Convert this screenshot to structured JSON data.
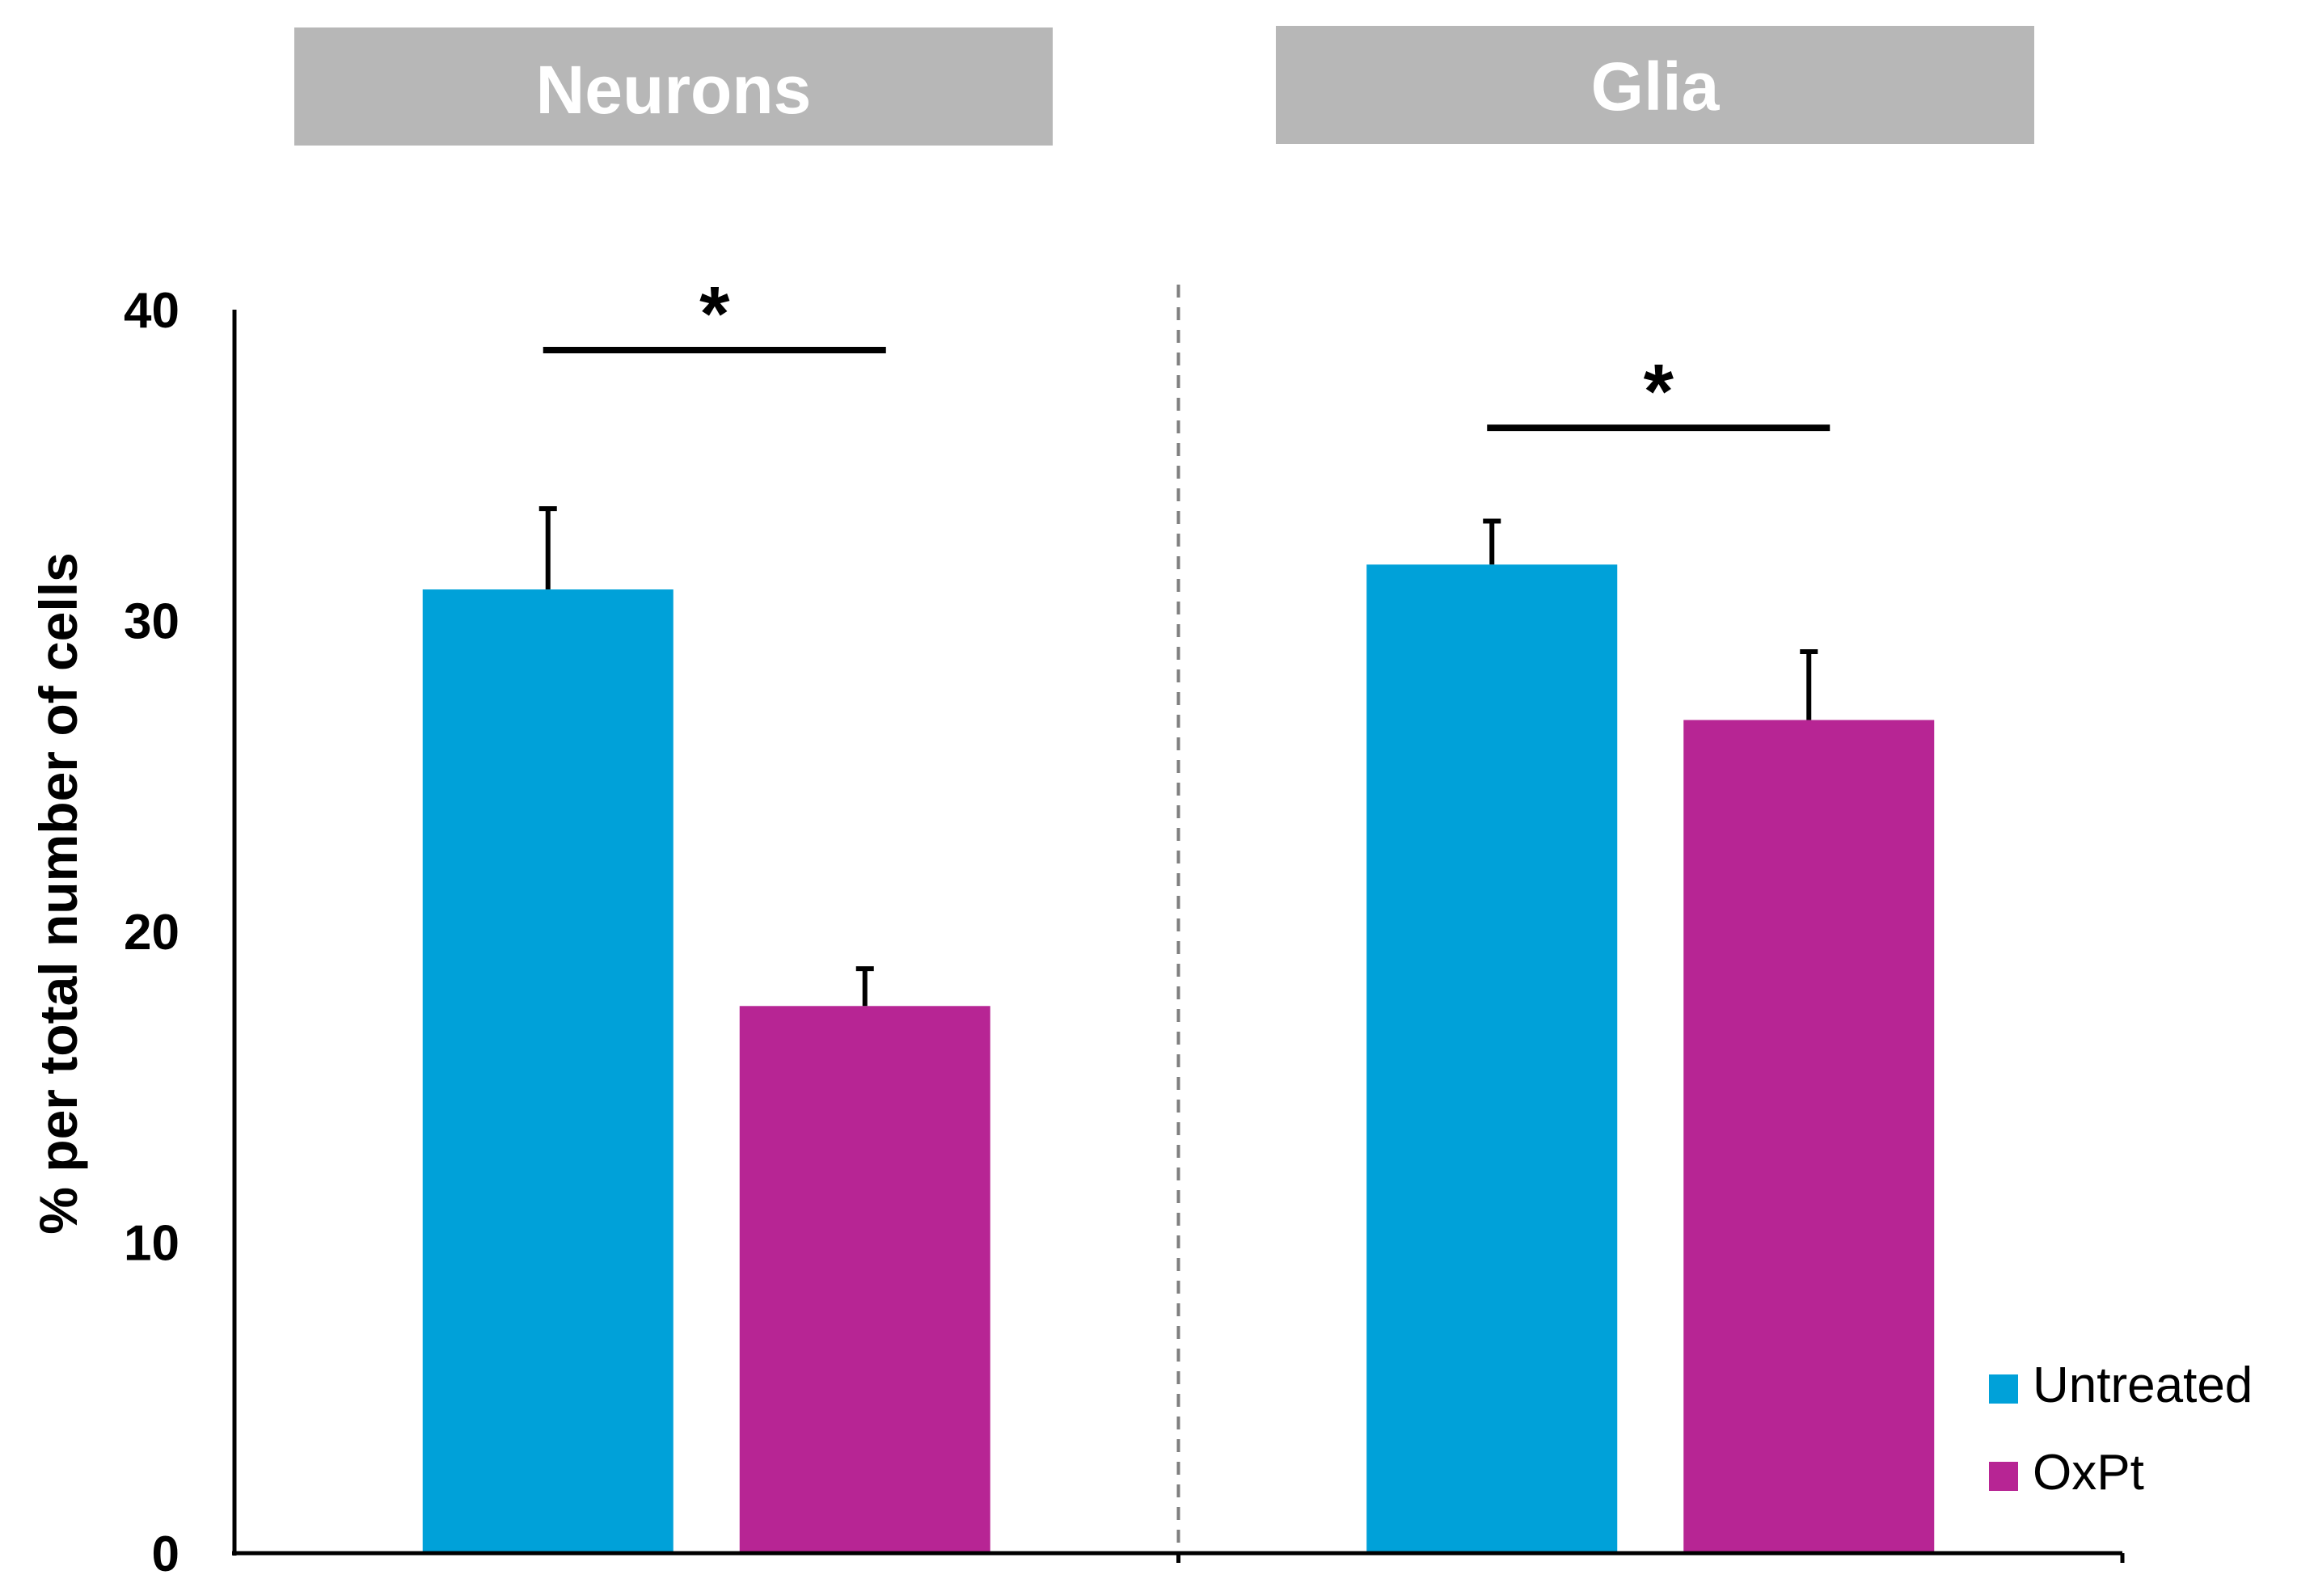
{
  "chart_data": {
    "type": "bar",
    "categories": [
      "Neurons",
      "Glia"
    ],
    "series": [
      {
        "name": "Untreated",
        "color": "#00a1d9",
        "values": [
          31.0,
          31.8
        ],
        "errors": [
          2.6,
          1.4
        ]
      },
      {
        "name": "OxPt",
        "color": "#b72594",
        "values": [
          17.6,
          26.8
        ],
        "errors": [
          1.2,
          2.2
        ]
      }
    ],
    "significance": [
      {
        "category": "Neurons",
        "label": "*",
        "level": 38.7
      },
      {
        "category": "Glia",
        "label": "*",
        "level": 36.2
      }
    ],
    "ylabel": "% per total number of cells",
    "xlabel": "",
    "ylim": [
      0,
      40
    ],
    "yticks": [
      0,
      10,
      20,
      30,
      40
    ],
    "legend_position": "bottom-right",
    "divider": "dashed"
  },
  "panel_labels": [
    "Neurons",
    "Glia"
  ]
}
